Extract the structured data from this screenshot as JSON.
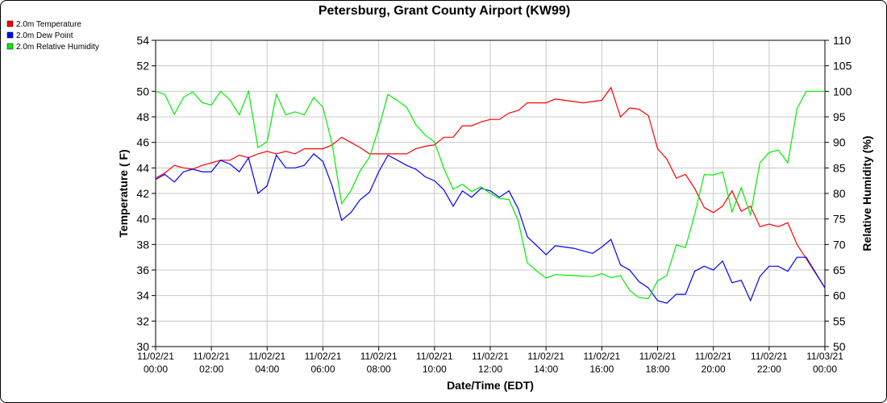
{
  "chart_data": {
    "type": "line",
    "title": "Petersburg, Grant County Airport (KW99)",
    "xlabel": "Date/Time (EDT)",
    "ylabel": "Temperature ( F)",
    "y2label": "Relative Humidity (%)",
    "ylim": [
      30,
      54
    ],
    "y2lim": [
      50,
      110
    ],
    "xlim_hours": [
      0,
      24
    ],
    "grid": true,
    "legend_position": "top-left",
    "y_ticks": [
      30,
      32,
      34,
      36,
      38,
      40,
      42,
      44,
      46,
      48,
      50,
      52,
      54
    ],
    "y2_ticks": [
      50,
      55,
      60,
      65,
      70,
      75,
      80,
      85,
      90,
      95,
      100,
      105,
      110
    ],
    "x_ticks": [
      {
        "hour": 0,
        "date": "11/02/21",
        "time": "00:00"
      },
      {
        "hour": 2,
        "date": "11/02/21",
        "time": "02:00"
      },
      {
        "hour": 4,
        "date": "11/02/21",
        "time": "04:00"
      },
      {
        "hour": 6,
        "date": "11/02/21",
        "time": "06:00"
      },
      {
        "hour": 8,
        "date": "11/02/21",
        "time": "08:00"
      },
      {
        "hour": 10,
        "date": "11/02/21",
        "time": "10:00"
      },
      {
        "hour": 12,
        "date": "11/02/21",
        "time": "12:00"
      },
      {
        "hour": 14,
        "date": "11/02/21",
        "time": "14:00"
      },
      {
        "hour": 16,
        "date": "11/02/21",
        "time": "16:00"
      },
      {
        "hour": 18,
        "date": "11/02/21",
        "time": "18:00"
      },
      {
        "hour": 20,
        "date": "11/02/21",
        "time": "20:00"
      },
      {
        "hour": 22,
        "date": "11/02/21",
        "time": "22:00"
      },
      {
        "hour": 24,
        "date": "11/03/21",
        "time": "00:00"
      }
    ],
    "series": [
      {
        "name": "2.0m Temperature",
        "axis": "left",
        "color": "#ff0000",
        "points": [
          [
            0.0,
            43.2
          ],
          [
            0.33,
            43.6
          ],
          [
            0.67,
            44.2
          ],
          [
            1.0,
            44.0
          ],
          [
            1.33,
            43.9
          ],
          [
            1.67,
            44.2
          ],
          [
            2.0,
            44.4
          ],
          [
            2.33,
            44.6
          ],
          [
            2.67,
            44.6
          ],
          [
            3.0,
            45.0
          ],
          [
            3.33,
            44.8
          ],
          [
            3.67,
            45.1
          ],
          [
            4.0,
            45.3
          ],
          [
            4.33,
            45.1
          ],
          [
            4.67,
            45.3
          ],
          [
            5.0,
            45.1
          ],
          [
            5.33,
            45.5
          ],
          [
            5.67,
            45.5
          ],
          [
            6.0,
            45.5
          ],
          [
            6.33,
            45.8
          ],
          [
            6.67,
            46.4
          ],
          [
            7.0,
            46.0
          ],
          [
            7.33,
            45.6
          ],
          [
            7.67,
            45.1
          ],
          [
            8.0,
            45.1
          ],
          [
            8.33,
            45.1
          ],
          [
            8.67,
            45.1
          ],
          [
            9.0,
            45.1
          ],
          [
            9.33,
            45.5
          ],
          [
            9.67,
            45.7
          ],
          [
            10.0,
            45.8
          ],
          [
            10.33,
            46.4
          ],
          [
            10.67,
            46.4
          ],
          [
            11.0,
            47.3
          ],
          [
            11.33,
            47.3
          ],
          [
            11.67,
            47.6
          ],
          [
            12.0,
            47.8
          ],
          [
            12.33,
            47.8
          ],
          [
            12.67,
            48.3
          ],
          [
            13.0,
            48.5
          ],
          [
            13.33,
            49.1
          ],
          [
            13.67,
            49.1
          ],
          [
            14.0,
            49.1
          ],
          [
            14.33,
            49.4
          ],
          [
            14.67,
            49.3
          ],
          [
            15.0,
            49.2
          ],
          [
            15.33,
            49.1
          ],
          [
            15.67,
            49.2
          ],
          [
            16.0,
            49.3
          ],
          [
            16.33,
            50.3
          ],
          [
            16.67,
            48.0
          ],
          [
            17.0,
            48.7
          ],
          [
            17.33,
            48.6
          ],
          [
            17.67,
            48.1
          ],
          [
            18.0,
            45.5
          ],
          [
            18.33,
            44.7
          ],
          [
            18.67,
            43.2
          ],
          [
            19.0,
            43.5
          ],
          [
            19.33,
            42.4
          ],
          [
            19.67,
            40.9
          ],
          [
            20.0,
            40.5
          ],
          [
            20.33,
            41.0
          ],
          [
            20.67,
            42.2
          ],
          [
            21.0,
            40.6
          ],
          [
            21.33,
            41.0
          ],
          [
            21.67,
            39.4
          ],
          [
            22.0,
            39.6
          ],
          [
            22.33,
            39.4
          ],
          [
            22.67,
            39.7
          ],
          [
            23.0,
            38.0
          ],
          [
            23.33,
            36.9
          ],
          [
            24.0,
            34.6
          ]
        ]
      },
      {
        "name": "2.0m Dew Point",
        "axis": "left",
        "color": "#0000ff",
        "points": [
          [
            0.0,
            43.1
          ],
          [
            0.33,
            43.5
          ],
          [
            0.67,
            42.9
          ],
          [
            1.0,
            43.7
          ],
          [
            1.33,
            43.9
          ],
          [
            1.67,
            43.7
          ],
          [
            2.0,
            43.7
          ],
          [
            2.33,
            44.6
          ],
          [
            2.67,
            44.3
          ],
          [
            3.0,
            43.7
          ],
          [
            3.33,
            44.8
          ],
          [
            3.67,
            42.0
          ],
          [
            4.0,
            42.6
          ],
          [
            4.33,
            45.0
          ],
          [
            4.67,
            44.0
          ],
          [
            5.0,
            44.0
          ],
          [
            5.33,
            44.2
          ],
          [
            5.67,
            45.1
          ],
          [
            6.0,
            44.5
          ],
          [
            6.33,
            42.6
          ],
          [
            6.67,
            39.9
          ],
          [
            7.0,
            40.5
          ],
          [
            7.33,
            41.5
          ],
          [
            7.67,
            42.1
          ],
          [
            8.0,
            43.7
          ],
          [
            8.33,
            45.0
          ],
          [
            8.67,
            44.6
          ],
          [
            9.0,
            44.2
          ],
          [
            9.33,
            43.9
          ],
          [
            9.67,
            43.3
          ],
          [
            10.0,
            43.0
          ],
          [
            10.33,
            42.3
          ],
          [
            10.67,
            41.0
          ],
          [
            11.0,
            42.2
          ],
          [
            11.33,
            41.7
          ],
          [
            11.67,
            42.4
          ],
          [
            12.0,
            42.2
          ],
          [
            12.33,
            41.7
          ],
          [
            12.67,
            42.2
          ],
          [
            13.0,
            40.8
          ],
          [
            13.33,
            38.6
          ],
          [
            13.67,
            37.9
          ],
          [
            14.0,
            37.2
          ],
          [
            14.33,
            37.9
          ],
          [
            14.67,
            37.8
          ],
          [
            15.0,
            37.7
          ],
          [
            15.33,
            37.5
          ],
          [
            15.67,
            37.3
          ],
          [
            16.0,
            37.8
          ],
          [
            16.33,
            38.4
          ],
          [
            16.67,
            36.4
          ],
          [
            17.0,
            36.0
          ],
          [
            17.33,
            35.1
          ],
          [
            17.67,
            34.6
          ],
          [
            18.0,
            33.6
          ],
          [
            18.33,
            33.4
          ],
          [
            18.67,
            34.1
          ],
          [
            19.0,
            34.1
          ],
          [
            19.33,
            35.9
          ],
          [
            19.67,
            36.3
          ],
          [
            20.0,
            36.0
          ],
          [
            20.33,
            36.7
          ],
          [
            20.67,
            35.0
          ],
          [
            21.0,
            35.2
          ],
          [
            21.33,
            33.6
          ],
          [
            21.67,
            35.5
          ],
          [
            22.0,
            36.3
          ],
          [
            22.33,
            36.3
          ],
          [
            22.67,
            35.9
          ],
          [
            23.0,
            37.0
          ],
          [
            23.33,
            37.0
          ],
          [
            24.0,
            34.6
          ]
        ]
      },
      {
        "name": "2.0m Relative Humidity",
        "axis": "right",
        "color": "#00ee00",
        "points": [
          [
            0.0,
            100.0
          ],
          [
            0.33,
            99.4
          ],
          [
            0.67,
            95.5
          ],
          [
            1.0,
            98.8
          ],
          [
            1.33,
            99.9
          ],
          [
            1.67,
            97.8
          ],
          [
            2.0,
            97.3
          ],
          [
            2.33,
            100.0
          ],
          [
            2.67,
            98.3
          ],
          [
            3.0,
            95.4
          ],
          [
            3.33,
            100.0
          ],
          [
            3.67,
            89.0
          ],
          [
            4.0,
            90.1
          ],
          [
            4.33,
            99.4
          ],
          [
            4.67,
            95.4
          ],
          [
            5.0,
            96.0
          ],
          [
            5.33,
            95.4
          ],
          [
            5.67,
            98.8
          ],
          [
            6.0,
            96.9
          ],
          [
            6.33,
            89.7
          ],
          [
            6.67,
            78.0
          ],
          [
            7.0,
            80.5
          ],
          [
            7.33,
            84.4
          ],
          [
            7.67,
            87.1
          ],
          [
            8.0,
            92.8
          ],
          [
            8.33,
            99.4
          ],
          [
            8.67,
            98.2
          ],
          [
            9.0,
            96.9
          ],
          [
            9.33,
            93.5
          ],
          [
            9.67,
            91.4
          ],
          [
            10.0,
            90.1
          ],
          [
            10.33,
            85.0
          ],
          [
            10.67,
            80.8
          ],
          [
            11.0,
            81.8
          ],
          [
            11.33,
            80.4
          ],
          [
            11.67,
            81.3
          ],
          [
            12.0,
            80.0
          ],
          [
            12.33,
            79.0
          ],
          [
            12.67,
            78.8
          ],
          [
            13.0,
            74.7
          ],
          [
            13.33,
            66.4
          ],
          [
            13.67,
            64.8
          ],
          [
            14.0,
            63.4
          ],
          [
            14.33,
            64.1
          ],
          [
            14.67,
            64.0
          ],
          [
            15.0,
            63.9
          ],
          [
            15.33,
            63.8
          ],
          [
            15.67,
            63.7
          ],
          [
            16.0,
            64.3
          ],
          [
            16.33,
            63.5
          ],
          [
            16.67,
            63.9
          ],
          [
            17.0,
            61.0
          ],
          [
            17.33,
            59.6
          ],
          [
            17.67,
            59.4
          ],
          [
            18.0,
            62.9
          ],
          [
            18.33,
            63.9
          ],
          [
            18.67,
            69.9
          ],
          [
            19.0,
            69.4
          ],
          [
            19.33,
            75.9
          ],
          [
            19.67,
            83.7
          ],
          [
            20.0,
            83.6
          ],
          [
            20.33,
            84.2
          ],
          [
            20.67,
            76.4
          ],
          [
            21.0,
            81.1
          ],
          [
            21.33,
            75.8
          ],
          [
            21.67,
            86.0
          ],
          [
            22.0,
            88.0
          ],
          [
            22.33,
            88.5
          ],
          [
            22.67,
            86.0
          ],
          [
            23.0,
            96.6
          ],
          [
            23.33,
            100.0
          ],
          [
            24.0,
            100.0
          ]
        ]
      }
    ]
  }
}
